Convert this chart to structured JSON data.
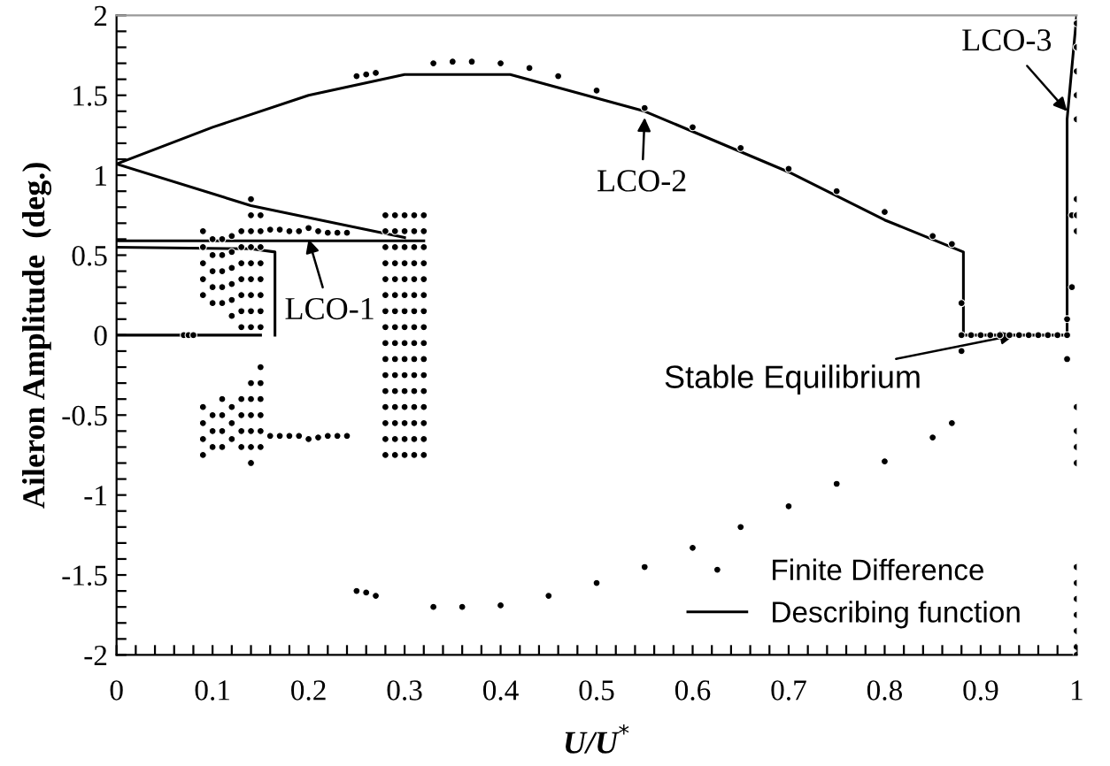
{
  "chart_data": {
    "type": "scatter",
    "xlabel": "U/U$^{*}$",
    "ylabel": "Aileron Amplitude  (deg.)",
    "xlim": [
      0,
      1.0
    ],
    "ylim": [
      -2,
      2
    ],
    "xticks": [
      0,
      {
        "value": 0.02,
        "label": null
      },
      {
        "value": 0.04,
        "label": null
      },
      {
        "value": 0.06,
        "label": null
      },
      {
        "value": 0.08,
        "label": null
      },
      0.1,
      {
        "value": 0.12,
        "label": null
      },
      {
        "value": 0.14,
        "label": null
      },
      {
        "value": 0.16,
        "label": null
      },
      {
        "value": 0.18,
        "label": null
      },
      0.2,
      {
        "value": 0.22,
        "label": null
      },
      {
        "value": 0.24,
        "label": null
      },
      {
        "value": 0.26,
        "label": null
      },
      {
        "value": 0.28,
        "label": null
      },
      0.3,
      {
        "value": 0.32,
        "label": null
      },
      {
        "value": 0.34,
        "label": null
      },
      {
        "value": 0.36,
        "label": null
      },
      {
        "value": 0.38,
        "label": null
      },
      0.4,
      {
        "value": 0.42,
        "label": null
      },
      {
        "value": 0.44,
        "label": null
      },
      {
        "value": 0.46,
        "label": null
      },
      {
        "value": 0.48,
        "label": null
      },
      0.5,
      {
        "value": 0.52,
        "label": null
      },
      {
        "value": 0.54,
        "label": null
      },
      {
        "value": 0.56,
        "label": null
      },
      {
        "value": 0.58,
        "label": null
      },
      0.6,
      {
        "value": 0.62,
        "label": null
      },
      {
        "value": 0.64,
        "label": null
      },
      {
        "value": 0.66,
        "label": null
      },
      {
        "value": 0.68,
        "label": null
      },
      0.7,
      {
        "value": 0.72,
        "label": null
      },
      {
        "value": 0.74,
        "label": null
      },
      {
        "value": 0.76,
        "label": null
      },
      {
        "value": 0.78,
        "label": null
      },
      0.8,
      {
        "value": 0.82,
        "label": null
      },
      {
        "value": 0.84,
        "label": null
      },
      {
        "value": 0.86,
        "label": null
      },
      {
        "value": 0.88,
        "label": null
      },
      0.9,
      {
        "value": 0.92,
        "label": null
      },
      {
        "value": 0.94,
        "label": null
      },
      {
        "value": 0.96,
        "label": null
      },
      {
        "value": 0.98,
        "label": null
      },
      1
    ],
    "yticks": [
      -2,
      {
        "value": -1.9,
        "label": null
      },
      {
        "value": -1.8,
        "label": null
      },
      {
        "value": -1.7,
        "label": null
      },
      {
        "value": -1.6,
        "label": null
      },
      -1.5,
      {
        "value": -1.4,
        "label": null
      },
      {
        "value": -1.3,
        "label": null
      },
      {
        "value": -1.2,
        "label": null
      },
      {
        "value": -1.1,
        "label": null
      },
      -1,
      {
        "value": -0.9,
        "label": null
      },
      {
        "value": -0.8,
        "label": null
      },
      {
        "value": -0.7,
        "label": null
      },
      {
        "value": -0.6,
        "label": null
      },
      -0.5,
      {
        "value": -0.4,
        "label": null
      },
      {
        "value": -0.3,
        "label": null
      },
      {
        "value": -0.2,
        "label": null
      },
      {
        "value": -0.1,
        "label": null
      },
      0,
      {
        "value": 0.1,
        "label": null
      },
      {
        "value": 0.2,
        "label": null
      },
      {
        "value": 0.3,
        "label": null
      },
      {
        "value": 0.4,
        "label": null
      },
      0.5,
      {
        "value": 0.6,
        "label": null
      },
      {
        "value": 0.7,
        "label": null
      },
      {
        "value": 0.8,
        "label": null
      },
      {
        "value": 0.9,
        "label": null
      },
      1,
      {
        "value": 1.1,
        "label": null
      },
      {
        "value": 1.2,
        "label": null
      },
      {
        "value": 1.3,
        "label": null
      },
      {
        "value": 1.4,
        "label": null
      },
      1.5,
      {
        "value": 1.6,
        "label": null
      },
      {
        "value": 1.7,
        "label": null
      },
      {
        "value": 1.8,
        "label": null
      },
      {
        "value": 1.9,
        "label": null
      },
      2
    ],
    "grid": false,
    "legend": "bottom right",
    "annotations": [
      {
        "text": "LCO-1",
        "x": 0.2,
        "y": 0.6
      },
      {
        "text": "LCO-2",
        "x": 0.55,
        "y": 1.36
      },
      {
        "text": "LCO-3",
        "x": 0.99,
        "y": 1.4
      },
      {
        "text": "Stable Equilibrium",
        "x": 0.935,
        "y": 0
      }
    ],
    "series": [
      {
        "name": "Finite Difference",
        "marker": "circle",
        "color": "#000000",
        "x": [
          0.07,
          0.075,
          0.08,
          0.09,
          0.09,
          0.09,
          0.09,
          0.09,
          0.09,
          0.09,
          0.09,
          0.09,
          0.1,
          0.1,
          0.1,
          0.1,
          0.1,
          0.1,
          0.1,
          0.1,
          0.11,
          0.11,
          0.11,
          0.11,
          0.11,
          0.11,
          0.11,
          0.11,
          0.11,
          0.12,
          0.12,
          0.12,
          0.12,
          0.12,
          0.12,
          0.12,
          0.12,
          0.12,
          0.13,
          0.13,
          0.13,
          0.13,
          0.13,
          0.13,
          0.13,
          0.13,
          0.13,
          0.13,
          0.13,
          0.14,
          0.14,
          0.14,
          0.14,
          0.14,
          0.14,
          0.14,
          0.14,
          0.14,
          0.14,
          0.14,
          0.14,
          0.14,
          0.14,
          0.14,
          0.15,
          0.15,
          0.15,
          0.15,
          0.15,
          0.15,
          0.15,
          0.15,
          0.15,
          0.15,
          0.15,
          0.15,
          0.15,
          0.15,
          0.16,
          0.17,
          0.18,
          0.19,
          0.2,
          0.21,
          0.22,
          0.23,
          0.24,
          0.16,
          0.17,
          0.18,
          0.19,
          0.2,
          0.21,
          0.22,
          0.23,
          0.24,
          0.25,
          0.26,
          0.27,
          0.25,
          0.26,
          0.27,
          0.28,
          0.28,
          0.28,
          0.28,
          0.28,
          0.28,
          0.28,
          0.28,
          0.28,
          0.28,
          0.28,
          0.28,
          0.28,
          0.28,
          0.28,
          0.28,
          0.29,
          0.29,
          0.29,
          0.29,
          0.29,
          0.29,
          0.29,
          0.29,
          0.29,
          0.29,
          0.29,
          0.29,
          0.29,
          0.29,
          0.29,
          0.29,
          0.3,
          0.3,
          0.3,
          0.3,
          0.3,
          0.3,
          0.3,
          0.3,
          0.3,
          0.3,
          0.3,
          0.3,
          0.3,
          0.3,
          0.3,
          0.3,
          0.31,
          0.31,
          0.31,
          0.31,
          0.31,
          0.31,
          0.31,
          0.31,
          0.31,
          0.31,
          0.31,
          0.31,
          0.31,
          0.31,
          0.31,
          0.31,
          0.32,
          0.32,
          0.32,
          0.32,
          0.32,
          0.32,
          0.32,
          0.32,
          0.32,
          0.32,
          0.32,
          0.32,
          0.32,
          0.32,
          0.32,
          0.32,
          0.33,
          0.35,
          0.37,
          0.4,
          0.43,
          0.46,
          0.5,
          0.55,
          0.6,
          0.65,
          0.7,
          0.75,
          0.8,
          0.85,
          0.87,
          0.33,
          0.36,
          0.4,
          0.45,
          0.5,
          0.55,
          0.6,
          0.65,
          0.7,
          0.75,
          0.8,
          0.85,
          0.87,
          0.88,
          0.89,
          0.9,
          0.91,
          0.92,
          0.93,
          0.94,
          0.95,
          0.96,
          0.97,
          0.98,
          0.99,
          0.88,
          0.88,
          0.99,
          0.99,
          0.995,
          0.995,
          1.0,
          1.0,
          1.0,
          1.0,
          1.0,
          1.0,
          1.0,
          1.0,
          1.0,
          1.0,
          1.0,
          1.0,
          1.0,
          1.0,
          1.0,
          1.0,
          1.0,
          1.0,
          1.0
        ],
        "values": [
          0,
          0,
          0,
          0.65,
          0.55,
          0.45,
          0.35,
          0.25,
          -0.45,
          -0.55,
          -0.65,
          -0.75,
          0.6,
          0.5,
          0.4,
          0.3,
          0.2,
          -0.5,
          -0.6,
          -0.7,
          0.6,
          0.5,
          0.4,
          0.3,
          0.2,
          -0.4,
          -0.5,
          -0.6,
          -0.7,
          0.62,
          0.52,
          0.42,
          0.32,
          0.22,
          0.12,
          -0.45,
          -0.55,
          -0.65,
          0.65,
          0.55,
          0.45,
          0.35,
          0.25,
          0.15,
          0.05,
          -0.4,
          -0.5,
          -0.6,
          -0.7,
          0.85,
          0.75,
          0.65,
          0.55,
          0.45,
          0.35,
          0.25,
          0.15,
          0.05,
          -0.3,
          -0.4,
          -0.5,
          -0.6,
          -0.7,
          -0.8,
          0.75,
          0.65,
          0.55,
          0.45,
          0.35,
          0.25,
          0.15,
          0.05,
          -0.2,
          -0.3,
          -0.4,
          -0.5,
          -0.6,
          -0.7,
          0.66,
          0.66,
          0.65,
          0.65,
          0.67,
          0.65,
          0.64,
          0.64,
          0.64,
          -0.63,
          -0.63,
          -0.63,
          -0.63,
          -0.65,
          -0.64,
          -0.63,
          -0.63,
          -0.63,
          1.62,
          1.63,
          1.64,
          -1.6,
          -1.61,
          -1.63,
          0.75,
          0.65,
          0.55,
          0.45,
          0.35,
          0.25,
          0.15,
          0.05,
          -0.05,
          -0.15,
          -0.25,
          -0.35,
          -0.45,
          -0.55,
          -0.65,
          -0.75,
          0.75,
          0.65,
          0.55,
          0.45,
          0.35,
          0.25,
          0.15,
          0.05,
          -0.05,
          -0.15,
          -0.25,
          -0.35,
          -0.45,
          -0.55,
          -0.65,
          -0.75,
          0.75,
          0.65,
          0.55,
          0.45,
          0.35,
          0.25,
          0.15,
          0.05,
          -0.05,
          -0.15,
          -0.25,
          -0.35,
          -0.45,
          -0.55,
          -0.65,
          -0.75,
          0.75,
          0.65,
          0.55,
          0.45,
          0.35,
          0.25,
          0.15,
          0.05,
          -0.05,
          -0.15,
          -0.25,
          -0.35,
          -0.45,
          -0.55,
          -0.65,
          -0.75,
          0.75,
          0.65,
          0.55,
          0.45,
          0.35,
          0.25,
          0.15,
          0.05,
          -0.05,
          -0.15,
          -0.25,
          -0.35,
          -0.45,
          -0.55,
          -0.65,
          -0.75,
          1.7,
          1.71,
          1.71,
          1.7,
          1.67,
          1.62,
          1.53,
          1.42,
          1.3,
          1.17,
          1.04,
          0.9,
          0.77,
          0.62,
          0.57,
          -1.7,
          -1.7,
          -1.69,
          -1.63,
          -1.55,
          -1.45,
          -1.33,
          -1.2,
          -1.07,
          -0.93,
          -0.79,
          -0.64,
          -0.55,
          0,
          0,
          0,
          0,
          0,
          0,
          0,
          0,
          0,
          0,
          0,
          0,
          0.2,
          -0.1,
          0.1,
          -0.15,
          0.3,
          0.75,
          1.95,
          1.8,
          1.65,
          1.5,
          1.35,
          0.85,
          0.75,
          0.65,
          -0.45,
          -0.6,
          -0.7,
          -0.8,
          -1.45,
          -1.55,
          -1.65,
          -1.75,
          -1.85,
          -1.95,
          -2.0
        ]
      },
      {
        "name": "Describing function",
        "type": "line",
        "marker": "none",
        "line_style": "solid",
        "color": "#000000",
        "x": [
          0,
          0.1,
          0.2,
          0.3,
          0.41,
          0.55,
          0.7,
          0.8,
          0.882,
          0.882,
          0.99,
          0.99,
          1.0,
          null,
          0,
          0.14,
          0.3,
          null,
          0,
          0.32,
          null,
          0,
          0.14,
          0.165,
          0.165,
          null,
          0,
          0.15
        ],
        "values": [
          1.07,
          1.3,
          1.5,
          1.63,
          1.63,
          1.4,
          1.02,
          0.72,
          0.52,
          0,
          0,
          1.35,
          2.0,
          null,
          1.07,
          0.81,
          0.61,
          null,
          0.59,
          0.59,
          null,
          0.55,
          0.54,
          0.52,
          0,
          null,
          0,
          0
        ]
      }
    ]
  }
}
